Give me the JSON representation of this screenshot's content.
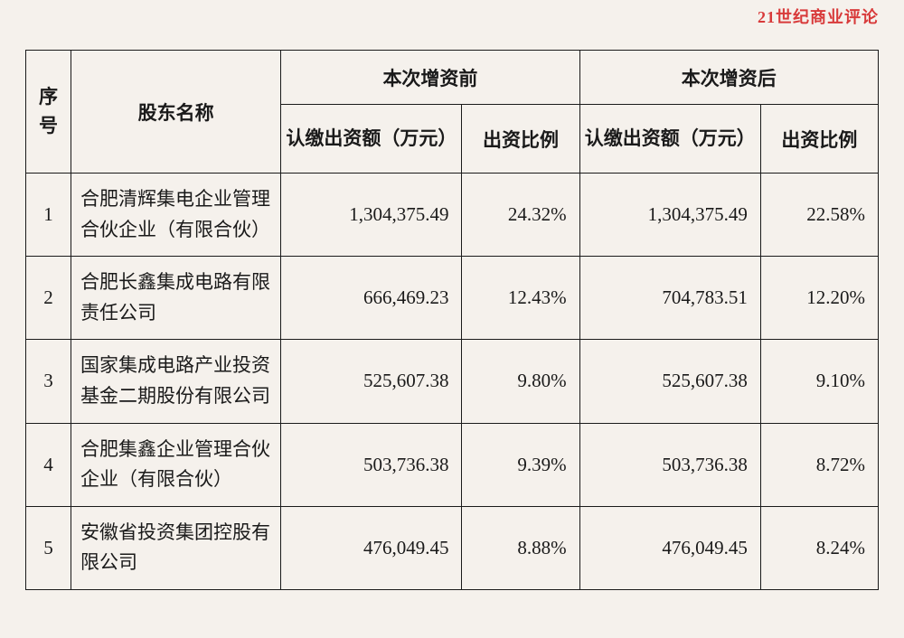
{
  "watermark": "21世纪商业评论",
  "table": {
    "headers": {
      "seq": "序号",
      "shareholder_name": "股东名称",
      "before_group": "本次增资前",
      "after_group": "本次增资后",
      "amount_label": "认缴出资额（万元）",
      "ratio_label": "出资比例"
    },
    "rows": [
      {
        "seq": "1",
        "name": "合肥清辉集电企业管理合伙企业（有限合伙）",
        "before_amount": "1,304,375.49",
        "before_ratio": "24.32%",
        "after_amount": "1,304,375.49",
        "after_ratio": "22.58%"
      },
      {
        "seq": "2",
        "name": "合肥长鑫集成电路有限责任公司",
        "before_amount": "666,469.23",
        "before_ratio": "12.43%",
        "after_amount": "704,783.51",
        "after_ratio": "12.20%"
      },
      {
        "seq": "3",
        "name": "国家集成电路产业投资基金二期股份有限公司",
        "before_amount": "525,607.38",
        "before_ratio": "9.80%",
        "after_amount": "525,607.38",
        "after_ratio": "9.10%"
      },
      {
        "seq": "4",
        "name": "合肥集鑫企业管理合伙企业（有限合伙）",
        "before_amount": "503,736.38",
        "before_ratio": "9.39%",
        "after_amount": "503,736.38",
        "after_ratio": "8.72%"
      },
      {
        "seq": "5",
        "name": "安徽省投资集团控股有限公司",
        "before_amount": "476,049.45",
        "before_ratio": "8.88%",
        "after_amount": "476,049.45",
        "after_ratio": "8.24%"
      }
    ]
  },
  "styling": {
    "background_color": "#f5f1ec",
    "border_color": "#1a1a1a",
    "text_color": "#1a1a1a",
    "watermark_color": "#d83a3a",
    "font_size_header": 21,
    "font_size_data": 21,
    "column_widths": {
      "seq": 50,
      "name": 232,
      "amount": 200,
      "ratio": 130
    },
    "type": "table"
  }
}
